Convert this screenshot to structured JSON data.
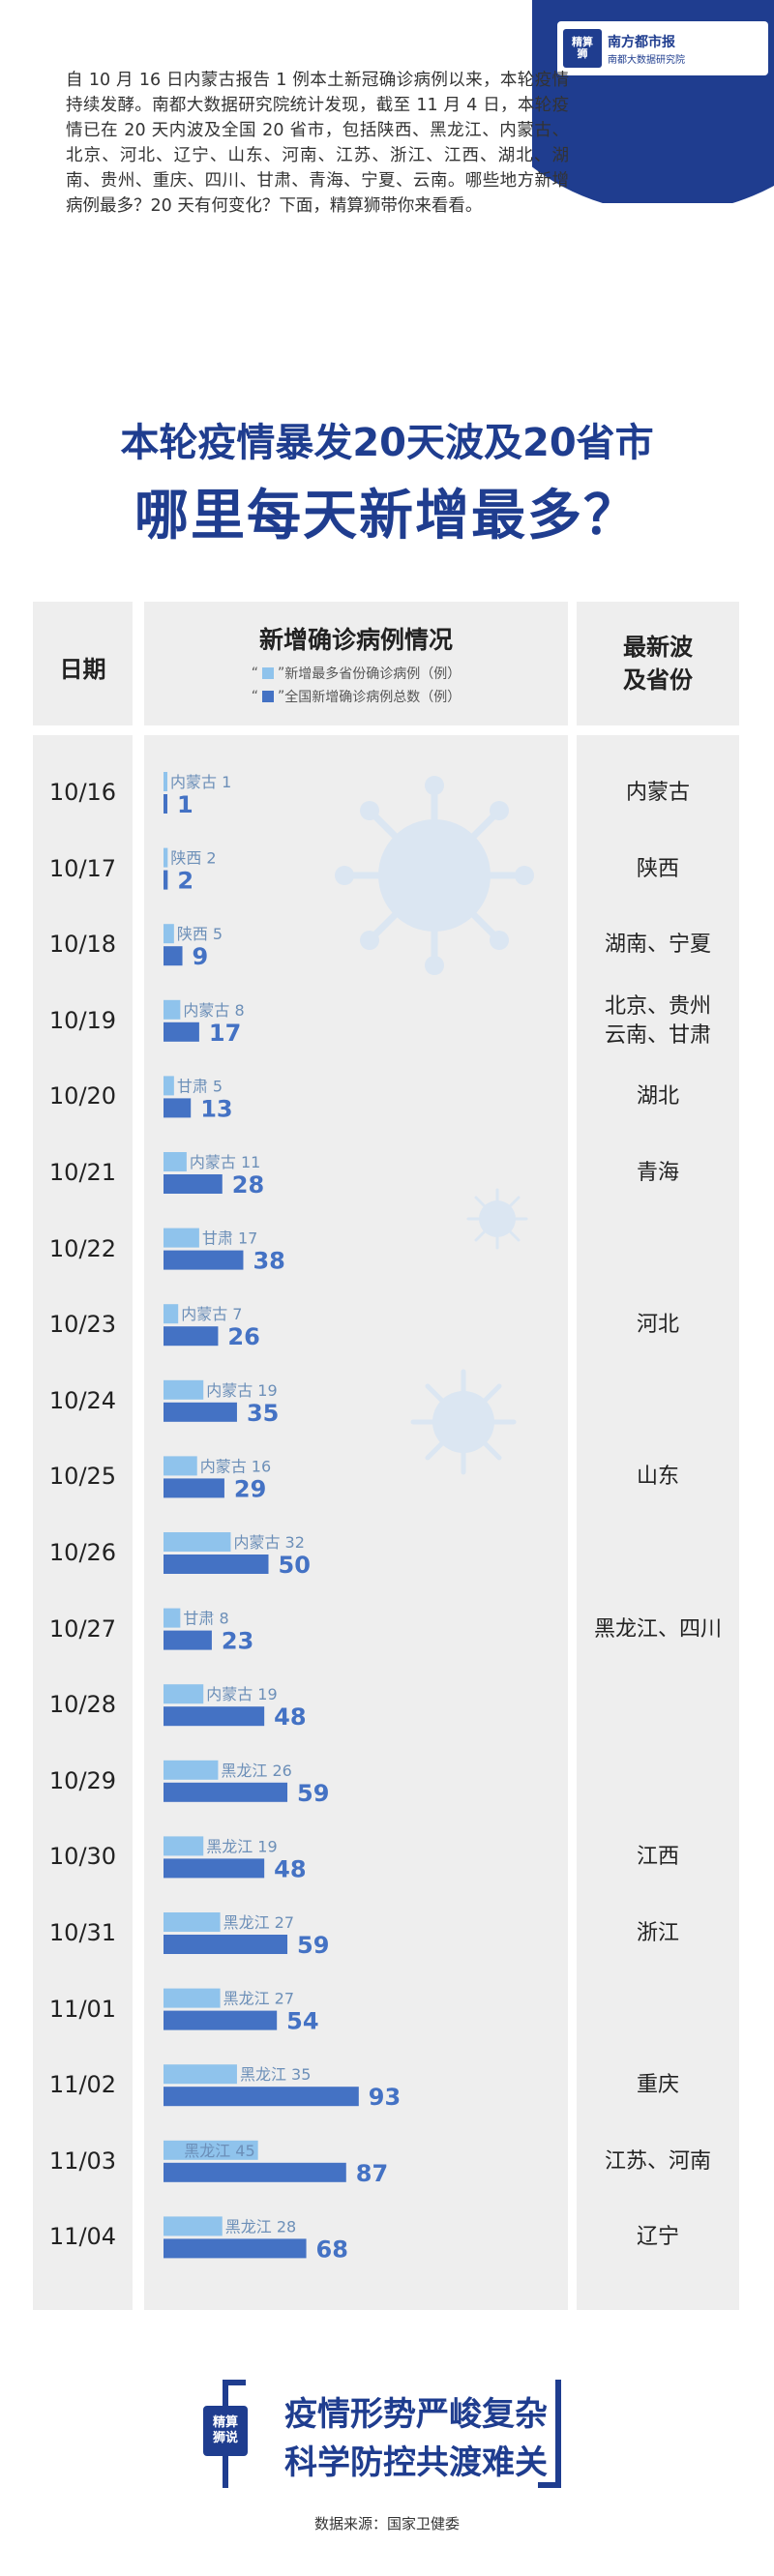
{
  "intro": "自 10 月 16 日内蒙古报告 1 例本土新冠确诊病例以来，本轮疫情持续发酵。南都大数据研究院统计发现，截至 11 月 4 日，本轮疫情已在 20 天内波及全国 20 省市，包括陕西、黑龙江、内蒙古、北京、河北、辽宁、山东、河南、江苏、浙江、江西、湖北、湖南、贵州、重庆、四川、甘肃、青海、宁夏、云南。哪些地方新增病例最多？20 天有何变化？下面，精算狮带你来看看。",
  "logo": {
    "mark": "精算\n狮",
    "brand": "南方都市报",
    "sub": "南都大数据研究院"
  },
  "headline": {
    "line1": "本轮疫情暴发20天波及20省市",
    "line2": "哪里每天新增最多？"
  },
  "header": {
    "date": "日期",
    "chart": "新增确诊病例情况",
    "prov_line1": "最新波",
    "prov_line2": "及省份",
    "legend_light": "新增最多省份确诊病例（例）",
    "legend_dark": "全国新增确诊病例总数（例）"
  },
  "colors": {
    "light": "#8fc3ec",
    "dark": "#4472c4",
    "navy": "#1f3d8f",
    "panel": "#eeeeee"
  },
  "chart_data": {
    "type": "bar",
    "title": "新增确诊病例情况",
    "categories": [
      "10/16",
      "10/17",
      "10/18",
      "10/19",
      "10/20",
      "10/21",
      "10/22",
      "10/23",
      "10/24",
      "10/25",
      "10/26",
      "10/27",
      "10/28",
      "10/29",
      "10/30",
      "10/31",
      "11/01",
      "11/02",
      "11/03",
      "11/04"
    ],
    "series": [
      {
        "name": "新增最多省份确诊病例（例）",
        "provinces": [
          "内蒙古",
          "陕西",
          "陕西",
          "内蒙古",
          "甘肃",
          "内蒙古",
          "甘肃",
          "内蒙古",
          "内蒙古",
          "内蒙古",
          "内蒙古",
          "甘肃",
          "内蒙古",
          "黑龙江",
          "黑龙江",
          "黑龙江",
          "黑龙江",
          "黑龙江",
          "黑龙江",
          "黑龙江"
        ],
        "values": [
          1,
          2,
          5,
          8,
          5,
          11,
          17,
          7,
          19,
          16,
          32,
          8,
          19,
          26,
          19,
          27,
          27,
          35,
          45,
          28
        ]
      },
      {
        "name": "全国新增确诊病例总数（例）",
        "values": [
          1,
          2,
          9,
          17,
          13,
          28,
          38,
          26,
          35,
          29,
          50,
          23,
          48,
          59,
          48,
          59,
          54,
          93,
          87,
          68
        ]
      }
    ],
    "new_provinces": [
      "内蒙古",
      "陕西",
      "湖南、宁夏",
      "北京、贵州\n云南、甘肃",
      "湖北",
      "青海",
      "",
      "河北",
      "",
      "山东",
      "",
      "黑龙江、四川",
      "",
      "",
      "江西",
      "浙江",
      "",
      "重庆",
      "江苏、河南",
      "辽宁"
    ]
  },
  "footer": {
    "tag": "精算\n狮说",
    "slogan1": "疫情形势严峻复杂",
    "slogan2": "科学防控共渡难关",
    "source": "数据来源：国家卫健委"
  }
}
